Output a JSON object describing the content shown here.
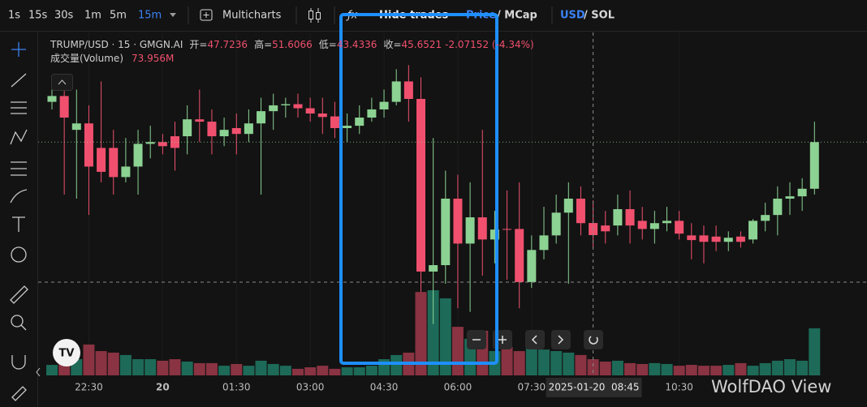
{
  "toolbar": {
    "intervals": [
      "1s",
      "15s",
      "30s",
      "1m",
      "5m",
      "15m"
    ],
    "multicharts": "Multicharts",
    "hide_trades": "Hide trades",
    "price": "Price",
    "mcap": "/ MCap",
    "usd": "USD",
    "sol": "/ SOL"
  },
  "chart_data": {
    "type": "candlestick",
    "title": "TRUMP/USD · 15 · GMGN.AI",
    "legend": {
      "open_label": "开=",
      "high_label": "高=",
      "low_label": "低=",
      "close_label": "收=",
      "change": "-2.07152 (-4.34%)",
      "volume_title": "成交量(Volume)",
      "volume_value": "73.956M"
    },
    "categories": [
      null,
      null,
      null,
      "22:30",
      null,
      null,
      null,
      null,
      null,
      "20",
      null,
      null,
      null,
      null,
      null,
      "01:30",
      null,
      null,
      null,
      null,
      null,
      "03:00",
      null,
      null,
      null,
      null,
      null,
      "04:30",
      null,
      null,
      null,
      null,
      null,
      "06:00",
      null,
      null,
      null,
      null,
      null,
      "07:30",
      null,
      null,
      null,
      null,
      null,
      null,
      null,
      null,
      null,
      null,
      null,
      "10:30",
      null,
      null,
      null,
      null,
      null,
      null,
      null,
      null,
      null,
      null,
      null
    ],
    "open": [
      68.5,
      69.5,
      63.7,
      64.8,
      60.6,
      60.6,
      55.6,
      57.4,
      61.3,
      61.6,
      62.6,
      62.6,
      65.5,
      65.1,
      62.6,
      64.0,
      63.0,
      64.8,
      66.9,
      67.9,
      68.1,
      67.4,
      66.5,
      66.0,
      64.0,
      64.4,
      65.8,
      67.2,
      68.5,
      72.0,
      69.0,
      39.4,
      40.5,
      51.9,
      44.2,
      48.7,
      44.9,
      46.7,
      46.7,
      37.6,
      43.1,
      45.6,
      49.5,
      51.9,
      47.7236,
      47.3,
      47.3,
      50.1,
      48.1,
      46.7,
      47.7,
      48.1,
      45.6,
      45.6,
      45.4,
      44.5,
      45.4,
      44.9,
      48.1,
      49.1,
      51.9,
      52.3,
      53.6
    ],
    "high": [
      71.3,
      72.0,
      70.6,
      67.9,
      72.0,
      63.7,
      62.3,
      63.7,
      64.4,
      63.0,
      65.1,
      67.9,
      70.6,
      67.2,
      65.8,
      66.5,
      67.2,
      69.2,
      69.9,
      69.2,
      69.9,
      69.2,
      69.2,
      68.5,
      66.5,
      67.9,
      69.2,
      70.6,
      74.1,
      74.8,
      72.7,
      62.3,
      56.7,
      56.0,
      54.7,
      63.7,
      49.8,
      53.3,
      54.7,
      45.6,
      50.5,
      52.6,
      54.7,
      54.0,
      51.6066,
      49.8,
      52.6,
      53.3,
      50.5,
      49.8,
      50.5,
      49.8,
      47.7,
      47.3,
      47.3,
      46.3,
      46.3,
      48.4,
      51.2,
      54.0,
      54.7,
      55.4,
      65.1
    ],
    "low": [
      67.2,
      52.6,
      51.9,
      49.1,
      54.7,
      52.6,
      54.7,
      52.6,
      58.8,
      59.5,
      56.7,
      59.5,
      61.6,
      59.5,
      60.9,
      59.5,
      61.6,
      52.6,
      63.7,
      65.8,
      65.8,
      65.1,
      63.0,
      62.3,
      61.6,
      63.0,
      65.1,
      65.8,
      67.9,
      65.1,
      35.9,
      30.4,
      37.3,
      33.1,
      32.5,
      38.7,
      40.8,
      38.0,
      33.1,
      36.6,
      41.5,
      44.2,
      37.3,
      45.6,
      43.4336,
      44.2,
      45.6,
      44.2,
      44.9,
      44.2,
      46.3,
      44.9,
      41.5,
      40.8,
      42.9,
      42.9,
      43.5,
      44.2,
      46.3,
      45.6,
      49.1,
      49.8,
      52.6
    ],
    "close": [
      69.5,
      65.8,
      64.8,
      57.4,
      56.5,
      55.6,
      57.4,
      61.3,
      61.6,
      60.9,
      60.6,
      65.5,
      65.1,
      62.6,
      63.7,
      63.0,
      64.8,
      66.9,
      67.9,
      68.1,
      67.4,
      66.5,
      65.9,
      64.0,
      64.4,
      65.8,
      67.2,
      68.5,
      72.0,
      69.0,
      39.4,
      40.5,
      51.9,
      44.2,
      48.7,
      44.9,
      46.6,
      46.6,
      37.6,
      43.1,
      45.6,
      49.5,
      51.9,
      47.7,
      45.6521,
      46.3,
      50.1,
      47.3,
      46.7,
      47.7,
      48.1,
      45.9,
      44.8,
      44.5,
      44.5,
      45.2,
      44.5,
      48.1,
      49.1,
      51.9,
      52.3,
      53.6,
      61.6
    ],
    "volume": [
      48,
      93,
      74,
      141,
      111,
      104,
      93,
      74,
      74,
      67,
      74,
      63,
      56,
      56,
      44,
      52,
      44,
      67,
      52,
      44,
      30,
      37,
      44,
      30,
      37,
      37,
      44,
      74,
      93,
      104,
      381,
      389,
      352,
      222,
      167,
      204,
      111,
      130,
      111,
      130,
      118,
      111,
      104,
      93,
      73.956,
      63,
      67,
      56,
      52,
      56,
      52,
      44,
      48,
      44,
      44,
      48,
      56,
      44,
      56,
      67,
      74,
      67,
      215
    ],
    "ylim": [
      21.6,
      80.4
    ],
    "volume_ylim": [
      0,
      400
    ],
    "up_color": "#8cd293",
    "down_color": "#f0506e",
    "volume_up_color": "#1d6a58",
    "volume_down_color": "#8a3342",
    "crosshair_label": "2025-01-20  08:45",
    "crosshair_index": 44,
    "watermark": "WolfDAO View"
  }
}
